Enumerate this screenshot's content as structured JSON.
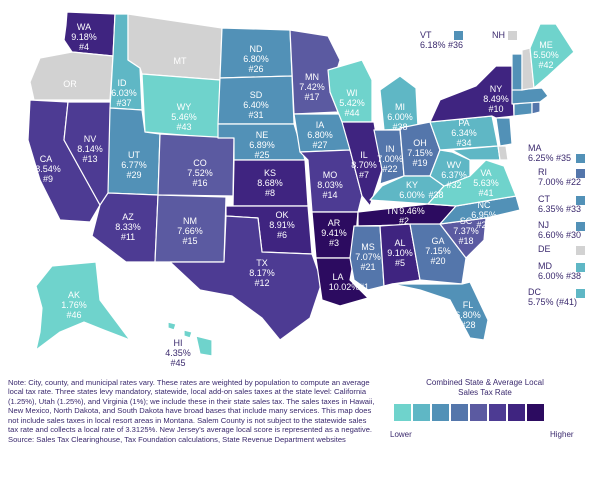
{
  "colors": {
    "c1": "#6fd3cc",
    "c2": "#5fb7c5",
    "c3": "#5291b7",
    "c4": "#5476ab",
    "c5": "#5b5aa1",
    "c6": "#4d3b93",
    "c7": "#3f2480",
    "c8": "#2c0b60",
    "na": "#d2d2d2"
  },
  "states": {
    "WA": {
      "code": "WA",
      "rate": "9.18%",
      "rank": "#4",
      "level": "c7"
    },
    "OR": {
      "code": "OR",
      "rate": "",
      "rank": "",
      "level": "na"
    },
    "CA": {
      "code": "CA",
      "rate": "8.54%",
      "rank": "#9",
      "level": "c6"
    },
    "NV": {
      "code": "NV",
      "rate": "8.14%",
      "rank": "#13",
      "level": "c6"
    },
    "ID": {
      "code": "ID",
      "rate": "6.03%",
      "rank": "#37",
      "level": "c2"
    },
    "MT": {
      "code": "MT",
      "rate": "",
      "rank": "",
      "level": "na"
    },
    "WY": {
      "code": "WY",
      "rate": "5.46%",
      "rank": "#43",
      "level": "c1"
    },
    "UT": {
      "code": "UT",
      "rate": "6.77%",
      "rank": "#29",
      "level": "c3"
    },
    "AZ": {
      "code": "AZ",
      "rate": "8.33%",
      "rank": "#11",
      "level": "c6"
    },
    "CO": {
      "code": "CO",
      "rate": "7.52%",
      "rank": "#16",
      "level": "c5"
    },
    "NM": {
      "code": "NM",
      "rate": "7.66%",
      "rank": "#15",
      "level": "c5"
    },
    "ND": {
      "code": "ND",
      "rate": "6.80%",
      "rank": "#26",
      "level": "c3"
    },
    "SD": {
      "code": "SD",
      "rate": "6.40%",
      "rank": "#31",
      "level": "c3"
    },
    "NE": {
      "code": "NE",
      "rate": "6.89%",
      "rank": "#25",
      "level": "c3"
    },
    "KS": {
      "code": "KS",
      "rate": "8.68%",
      "rank": "#8",
      "level": "c7"
    },
    "OK": {
      "code": "OK",
      "rate": "8.91%",
      "rank": "#6",
      "level": "c7"
    },
    "TX": {
      "code": "TX",
      "rate": "8.17%",
      "rank": "#12",
      "level": "c6"
    },
    "MN": {
      "code": "MN",
      "rate": "7.42%",
      "rank": "#17",
      "level": "c5"
    },
    "IA": {
      "code": "IA",
      "rate": "6.80%",
      "rank": "#27",
      "level": "c3"
    },
    "MO": {
      "code": "MO",
      "rate": "8.03%",
      "rank": "#14",
      "level": "c6"
    },
    "AR": {
      "code": "AR",
      "rate": "9.41%",
      "rank": "#3",
      "level": "c8"
    },
    "LA": {
      "code": "LA",
      "rate": "10.02%",
      "rank": "#1",
      "level": "c8"
    },
    "WI": {
      "code": "WI",
      "rate": "5.42%",
      "rank": "#44",
      "level": "c1"
    },
    "IL": {
      "code": "IL",
      "rate": "8.70%",
      "rank": "#7",
      "level": "c7"
    },
    "MI": {
      "code": "MI",
      "rate": "6.00%",
      "rank": "#38",
      "level": "c2"
    },
    "IN": {
      "code": "IN",
      "rate": "7.00%",
      "rank": "#22",
      "level": "c4"
    },
    "OH": {
      "code": "OH",
      "rate": "7.15%",
      "rank": "#19",
      "level": "c4"
    },
    "KY": {
      "code": "KY",
      "rate": "6.00%",
      "rank": "#38",
      "level": "c2"
    },
    "TN": {
      "code": "TN",
      "rate": "9.46%",
      "rank": "#2",
      "level": "c8"
    },
    "MS": {
      "code": "MS",
      "rate": "7.07%",
      "rank": "#21",
      "level": "c4"
    },
    "AL": {
      "code": "AL",
      "rate": "9.10%",
      "rank": "#5",
      "level": "c7"
    },
    "GA": {
      "code": "GA",
      "rate": "7.15%",
      "rank": "#20",
      "level": "c4"
    },
    "FL": {
      "code": "FL",
      "rate": "6.80%",
      "rank": "#28",
      "level": "c3"
    },
    "SC": {
      "code": "SC",
      "rate": "7.37%",
      "rank": "#18",
      "level": "c5"
    },
    "NC": {
      "code": "NC",
      "rate": "6.95%",
      "rank": "#24",
      "level": "c3"
    },
    "VA": {
      "code": "VA",
      "rate": "5.63%",
      "rank": "#41",
      "level": "c1"
    },
    "WV": {
      "code": "WV",
      "rate": "6.37%",
      "rank": "#32",
      "level": "c2"
    },
    "PA": {
      "code": "PA",
      "rate": "6.34%",
      "rank": "#34",
      "level": "c2"
    },
    "NY": {
      "code": "NY",
      "rate": "8.49%",
      "rank": "#10",
      "level": "c7"
    },
    "ME": {
      "code": "ME",
      "rate": "5.50%",
      "rank": "#42",
      "level": "c1"
    },
    "AK": {
      "code": "AK",
      "rate": "1.76%",
      "rank": "#46",
      "level": "c1"
    },
    "HI": {
      "code": "HI",
      "rate": "4.35%",
      "rank": "#45",
      "level": "c1"
    }
  },
  "side_labels": {
    "VT": {
      "code": "VT",
      "text": "6.18% #36",
      "level": "c3"
    },
    "NH": {
      "code": "NH",
      "text": "",
      "level": "na"
    },
    "MA": {
      "code": "MA",
      "text": "6.25% #35",
      "level": "c3"
    },
    "RI": {
      "code": "RI",
      "text": "7.00% #22",
      "level": "c4"
    },
    "CT": {
      "code": "CT",
      "text": "6.35% #33",
      "level": "c3"
    },
    "NJ": {
      "code": "NJ",
      "text": "6.60% #30",
      "level": "c3"
    },
    "DE": {
      "code": "DE",
      "text": "",
      "level": "na"
    },
    "MD": {
      "code": "MD",
      "text": "6.00% #38",
      "level": "c2"
    },
    "DC": {
      "code": "DC",
      "text": "5.75% (#41)",
      "level": "c2"
    }
  },
  "note": "Note: City, county, and municipal rates vary. These rates are weighted by population to compute an average local tax rate. Three states levy mandatory, statewide, local add-on sales taxes at the state level: California (1.25%), Utah (1.25%), and Virginia (1%); we include these in their state sales tax. The sales taxes in Hawaii, New Mexico, North Dakota, and South Dakota have broad bases that include many services. This map does not include sales taxes in local resort areas in Montana. Salem County is not subject to the statewide sales tax rate and collects a local rate of 3.3125%. New Jersey's average local score is represented as a negative.",
  "source": "Source: Sales Tax Clearinghouse, Tax Foundation calculations, State Revenue Department websites",
  "legend": {
    "title_line1": "Combined State & Average Local",
    "title_line2": "Sales Tax Rate",
    "lower": "Lower",
    "higher": "Higher"
  }
}
